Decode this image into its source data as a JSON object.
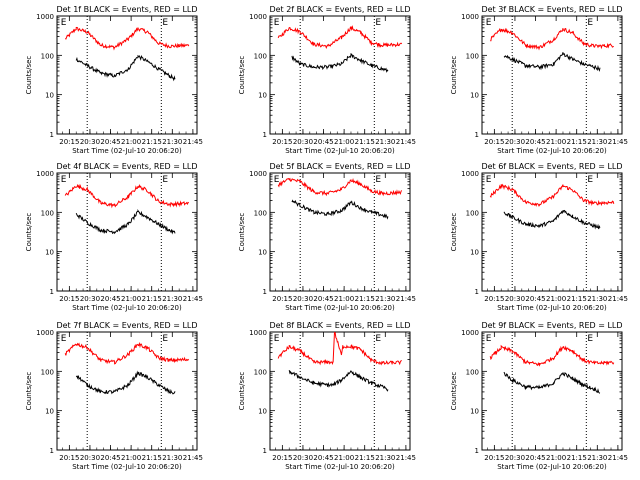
{
  "chart_data": [
    {
      "type": "line",
      "title": "Det 1f BLACK = Events, RED = LLD",
      "xlabel": "Start Time (02-Jul-10 20:06:20)",
      "ylabel": "Counts/sec",
      "x_ticks": [
        "20:15",
        "20:30",
        "20:45",
        "21:00",
        "21:15",
        "21:30",
        "21:45"
      ],
      "y_scale": "log",
      "ylim": [
        1,
        1000
      ],
      "y_ticks": [
        "1",
        "10",
        "100",
        "1000"
      ],
      "markers": [
        "20:28",
        "21:22"
      ],
      "marker_label": "E",
      "series": [
        {
          "name": "LLD",
          "color": "#ff0000",
          "x": [
            "20:12",
            "20:20",
            "20:28",
            "20:38",
            "20:48",
            "20:58",
            "21:05",
            "21:12",
            "21:20",
            "21:28",
            "21:35",
            "21:42"
          ],
          "values": [
            260,
            480,
            390,
            180,
            160,
            260,
            480,
            390,
            200,
            170,
            175,
            180
          ]
        },
        {
          "name": "Events",
          "color": "#000000",
          "x": [
            "20:20",
            "20:28",
            "20:38",
            "20:48",
            "20:58",
            "21:05",
            "21:12",
            "21:20",
            "21:28",
            "21:32"
          ],
          "values": [
            80,
            55,
            35,
            30,
            45,
            95,
            70,
            45,
            30,
            25
          ]
        }
      ]
    },
    {
      "type": "line",
      "title": "Det 2f BLACK = Events, RED = LLD",
      "xlabel": "Start Time (02-Jul-10 20:06:20)",
      "ylabel": "Counts/sec",
      "x_ticks": [
        "20:15",
        "20:30",
        "20:45",
        "21:00",
        "21:15",
        "21:30",
        "21:45"
      ],
      "y_scale": "log",
      "ylim": [
        1,
        1000
      ],
      "y_ticks": [
        "1",
        "10",
        "100",
        "1000"
      ],
      "markers": [
        "20:28",
        "21:22"
      ],
      "marker_label": "E",
      "series": [
        {
          "name": "LLD",
          "color": "#ff0000",
          "x": [
            "20:12",
            "20:20",
            "20:28",
            "20:38",
            "20:48",
            "20:58",
            "21:05",
            "21:12",
            "21:20",
            "21:28",
            "21:35",
            "21:42"
          ],
          "values": [
            270,
            500,
            400,
            190,
            170,
            280,
            500,
            380,
            210,
            180,
            185,
            190
          ]
        },
        {
          "name": "Events",
          "color": "#000000",
          "x": [
            "20:22",
            "20:28",
            "20:38",
            "20:48",
            "20:58",
            "21:05",
            "21:12",
            "21:20",
            "21:28",
            "21:32"
          ],
          "values": [
            90,
            60,
            50,
            50,
            60,
            100,
            75,
            55,
            45,
            40
          ]
        }
      ]
    },
    {
      "type": "line",
      "title": "Det 3f BLACK = Events, RED = LLD",
      "xlabel": "Start Time (02-Jul-10 20:06:20)",
      "ylabel": "Counts/sec",
      "x_ticks": [
        "20:15",
        "20:30",
        "20:45",
        "21:00",
        "21:15",
        "21:30",
        "21:45"
      ],
      "y_scale": "log",
      "ylim": [
        1,
        1000
      ],
      "y_ticks": [
        "1",
        "10",
        "100",
        "1000"
      ],
      "markers": [
        "20:28",
        "21:22"
      ],
      "marker_label": "E",
      "series": [
        {
          "name": "LLD",
          "color": "#ff0000",
          "x": [
            "20:12",
            "20:20",
            "20:28",
            "20:38",
            "20:48",
            "20:58",
            "21:05",
            "21:12",
            "21:20",
            "21:28",
            "21:35",
            "21:42"
          ],
          "values": [
            250,
            460,
            380,
            180,
            160,
            250,
            470,
            370,
            200,
            170,
            175,
            180
          ]
        },
        {
          "name": "Events",
          "color": "#000000",
          "x": [
            "20:22",
            "20:28",
            "20:38",
            "20:48",
            "20:58",
            "21:05",
            "21:12",
            "21:20",
            "21:28",
            "21:32"
          ],
          "values": [
            100,
            80,
            55,
            50,
            60,
            110,
            80,
            60,
            50,
            45
          ]
        }
      ]
    },
    {
      "type": "line",
      "title": "Det 4f BLACK = Events, RED = LLD",
      "xlabel": "Start Time (02-Jul-10 20:06:20)",
      "ylabel": "Counts/sec",
      "x_ticks": [
        "20:15",
        "20:30",
        "20:45",
        "21:00",
        "21:15",
        "21:30",
        "21:45"
      ],
      "y_scale": "log",
      "ylim": [
        1,
        1000
      ],
      "y_ticks": [
        "1",
        "10",
        "100",
        "1000"
      ],
      "markers": [
        "20:28",
        "21:22"
      ],
      "marker_label": "E",
      "series": [
        {
          "name": "LLD",
          "color": "#ff0000",
          "x": [
            "20:12",
            "20:20",
            "20:28",
            "20:38",
            "20:48",
            "20:58",
            "21:05",
            "21:12",
            "21:20",
            "21:28",
            "21:35",
            "21:42"
          ],
          "values": [
            260,
            470,
            380,
            170,
            150,
            250,
            460,
            360,
            190,
            160,
            165,
            170
          ]
        },
        {
          "name": "Events",
          "color": "#000000",
          "x": [
            "20:20",
            "20:28",
            "20:38",
            "20:48",
            "20:58",
            "21:05",
            "21:12",
            "21:20",
            "21:28",
            "21:32"
          ],
          "values": [
            90,
            55,
            35,
            32,
            50,
            100,
            75,
            50,
            35,
            30
          ]
        }
      ]
    },
    {
      "type": "line",
      "title": "Det 5f BLACK = Events, RED = LLD",
      "xlabel": "Start Time (02-Jul-10 20:06:20)",
      "ylabel": "Counts/sec",
      "x_ticks": [
        "20:15",
        "20:30",
        "20:45",
        "21:00",
        "21:15",
        "21:30",
        "21:45"
      ],
      "y_scale": "log",
      "ylim": [
        1,
        1000
      ],
      "y_ticks": [
        "1",
        "10",
        "100",
        "1000"
      ],
      "markers": [
        "20:28",
        "21:22"
      ],
      "marker_label": "E",
      "series": [
        {
          "name": "LLD",
          "color": "#ff0000",
          "x": [
            "20:12",
            "20:20",
            "20:28",
            "20:38",
            "20:48",
            "20:58",
            "21:05",
            "21:12",
            "21:20",
            "21:28",
            "21:35",
            "21:42"
          ],
          "values": [
            500,
            700,
            600,
            330,
            300,
            380,
            650,
            520,
            350,
            300,
            310,
            330
          ]
        },
        {
          "name": "Events",
          "color": "#000000",
          "x": [
            "20:22",
            "20:28",
            "20:38",
            "20:48",
            "20:58",
            "21:05",
            "21:12",
            "21:20",
            "21:28",
            "21:32"
          ],
          "values": [
            200,
            150,
            100,
            90,
            110,
            180,
            130,
            100,
            85,
            75
          ]
        }
      ]
    },
    {
      "type": "line",
      "title": "Det 6f BLACK = Events, RED = LLD",
      "xlabel": "Start Time (02-Jul-10 20:06:20)",
      "ylabel": "Counts/sec",
      "x_ticks": [
        "20:15",
        "20:30",
        "20:45",
        "21:00",
        "21:15",
        "21:30",
        "21:45"
      ],
      "y_scale": "log",
      "ylim": [
        1,
        1000
      ],
      "y_ticks": [
        "1",
        "10",
        "100",
        "1000"
      ],
      "markers": [
        "20:28",
        "21:22"
      ],
      "marker_label": "E",
      "series": [
        {
          "name": "LLD",
          "color": "#ff0000",
          "x": [
            "20:12",
            "20:20",
            "20:28",
            "20:38",
            "20:48",
            "20:58",
            "21:05",
            "21:12",
            "21:20",
            "21:28",
            "21:35",
            "21:42"
          ],
          "values": [
            250,
            480,
            380,
            180,
            160,
            250,
            470,
            370,
            200,
            170,
            175,
            180
          ]
        },
        {
          "name": "Events",
          "color": "#000000",
          "x": [
            "20:22",
            "20:28",
            "20:38",
            "20:48",
            "20:58",
            "21:05",
            "21:12",
            "21:20",
            "21:28",
            "21:32"
          ],
          "values": [
            100,
            75,
            50,
            45,
            60,
            110,
            80,
            55,
            45,
            40
          ]
        }
      ]
    },
    {
      "type": "line",
      "title": "Det 7f BLACK = Events, RED = LLD",
      "xlabel": "Start Time (02-Jul-10 20:06:20)",
      "ylabel": "Counts/sec",
      "x_ticks": [
        "20:15",
        "20:30",
        "20:45",
        "21:00",
        "21:15",
        "21:30",
        "21:45"
      ],
      "y_scale": "log",
      "ylim": [
        1,
        1000
      ],
      "y_ticks": [
        "1",
        "10",
        "100",
        "1000"
      ],
      "markers": [
        "20:28",
        "21:22"
      ],
      "marker_label": "E",
      "series": [
        {
          "name": "LLD",
          "color": "#ff0000",
          "x": [
            "20:12",
            "20:20",
            "20:28",
            "20:38",
            "20:48",
            "20:58",
            "21:05",
            "21:12",
            "21:20",
            "21:28",
            "21:35",
            "21:42"
          ],
          "values": [
            270,
            500,
            400,
            190,
            170,
            270,
            490,
            390,
            220,
            190,
            195,
            200
          ]
        },
        {
          "name": "Events",
          "color": "#000000",
          "x": [
            "20:20",
            "20:28",
            "20:38",
            "20:48",
            "20:58",
            "21:05",
            "21:12",
            "21:20",
            "21:28",
            "21:32"
          ],
          "values": [
            80,
            45,
            30,
            30,
            45,
            90,
            70,
            45,
            30,
            28
          ]
        }
      ]
    },
    {
      "type": "line",
      "title": "Det 8f BLACK = Events, RED = LLD",
      "xlabel": "Start Time (02-Jul-10 20:06:20)",
      "ylabel": "Counts/sec",
      "x_ticks": [
        "20:15",
        "20:30",
        "20:45",
        "21:00",
        "21:15",
        "21:30",
        "21:45"
      ],
      "y_scale": "log",
      "ylim": [
        1,
        1000
      ],
      "y_ticks": [
        "1",
        "10",
        "100",
        "1000"
      ],
      "markers": [
        "20:28",
        "21:22"
      ],
      "marker_label": "E",
      "series": [
        {
          "name": "LLD",
          "color": "#ff0000",
          "x": [
            "20:12",
            "20:20",
            "20:28",
            "20:38",
            "20:48",
            "20:52",
            "20:53",
            "20:58",
            "20:59",
            "21:05",
            "21:12",
            "21:20",
            "21:28",
            "21:35",
            "21:42"
          ],
          "values": [
            230,
            420,
            330,
            170,
            170,
            170,
            1000,
            260,
            430,
            430,
            360,
            190,
            160,
            165,
            170
          ]
        },
        {
          "name": "Events",
          "color": "#000000",
          "x": [
            "20:20",
            "20:28",
            "20:38",
            "20:48",
            "20:52",
            "20:58",
            "21:05",
            "21:12",
            "21:20",
            "21:28",
            "21:32"
          ],
          "values": [
            100,
            70,
            50,
            45,
            45,
            60,
            100,
            70,
            50,
            40,
            35
          ]
        }
      ]
    },
    {
      "type": "line",
      "title": "Det 9f BLACK = Events, RED = LLD",
      "xlabel": "Start Time (02-Jul-10 20:06:20)",
      "ylabel": "Counts/sec",
      "x_ticks": [
        "20:15",
        "20:30",
        "20:45",
        "21:00",
        "21:15",
        "21:30",
        "21:45"
      ],
      "y_scale": "log",
      "ylim": [
        1,
        1000
      ],
      "y_ticks": [
        "1",
        "10",
        "100",
        "1000"
      ],
      "markers": [
        "20:28",
        "21:22"
      ],
      "marker_label": "E",
      "series": [
        {
          "name": "LLD",
          "color": "#ff0000",
          "x": [
            "20:12",
            "20:20",
            "20:28",
            "20:38",
            "20:48",
            "20:58",
            "21:05",
            "21:12",
            "21:20",
            "21:28",
            "21:35",
            "21:42"
          ],
          "values": [
            220,
            400,
            330,
            170,
            150,
            220,
            420,
            330,
            190,
            160,
            165,
            170
          ]
        },
        {
          "name": "Events",
          "color": "#000000",
          "x": [
            "20:22",
            "20:28",
            "20:38",
            "20:48",
            "20:58",
            "21:05",
            "21:12",
            "21:20",
            "21:28",
            "21:32"
          ],
          "values": [
            90,
            60,
            40,
            38,
            50,
            90,
            65,
            45,
            35,
            30
          ]
        }
      ]
    }
  ]
}
